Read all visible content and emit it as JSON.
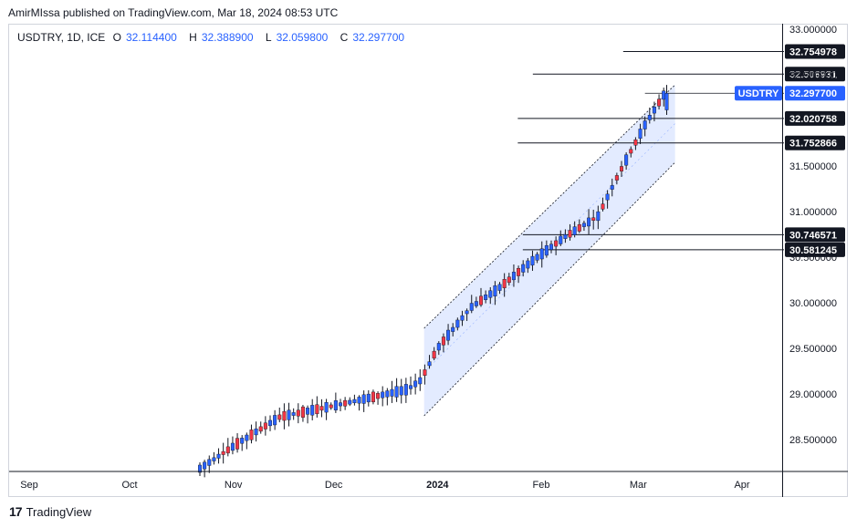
{
  "header": {
    "published": "AmirMIssa published on TradingView.com, Mar 18, 2024 08:53 UTC"
  },
  "legend": {
    "symbol": "USDTRY, 1D, ICE",
    "o_label": "O",
    "o": "32.114400",
    "h_label": "H",
    "h": "32.388900",
    "l_label": "L",
    "l": "32.059800",
    "c_label": "C",
    "c": "32.297700"
  },
  "footer": {
    "logo": "17",
    "brand": "TradingView"
  },
  "colors": {
    "up": "#2962ff",
    "down": "#f23645",
    "wick": "#131722",
    "channel_fill": "#2962ff"
  },
  "chart_data": {
    "type": "candlestick",
    "symbol": "USDTRY",
    "interval": "1D",
    "ylim": [
      28.15,
      33.05
    ],
    "y_ticks": [
      "33.000000",
      "32.500000",
      "31.500000",
      "31.000000",
      "30.500000",
      "30.000000",
      "29.500000",
      "29.000000",
      "28.500000"
    ],
    "y_tick_values": [
      33.0,
      32.5,
      31.5,
      31.0,
      30.5,
      30.0,
      29.5,
      29.0,
      28.5
    ],
    "x_labels": [
      "Sep",
      "Oct",
      "Nov",
      "Dec",
      "2024",
      "Feb",
      "Mar",
      "Apr"
    ],
    "x_label_days": [
      0,
      30,
      61,
      91,
      122,
      153,
      182,
      213
    ],
    "x_day_range": [
      -6,
      225
    ],
    "current_price": {
      "label": "USDTRY",
      "value": "32.297700",
      "price": 32.2977
    },
    "levels": [
      {
        "value": "32.754978",
        "price": 32.754978,
        "from_day": 177.5
      },
      {
        "value": "32.506931",
        "price": 32.506931,
        "from_day": 150.5
      },
      {
        "value": "32.020758",
        "price": 32.020758,
        "from_day": 146
      },
      {
        "value": "31.752866",
        "price": 31.752866,
        "from_day": 146
      },
      {
        "value": "30.746571",
        "price": 30.746571,
        "from_day": 147.5
      },
      {
        "value": "30.581245",
        "price": 30.581245,
        "from_day": 147.5
      }
    ],
    "channel": {
      "start_day": 118,
      "end_day": 193,
      "upper_start": 29.72,
      "upper_end": 32.39,
      "lower_start": 28.76,
      "lower_end": 31.54
    },
    "anchor_points": [
      {
        "day": 51,
        "price": 28.18
      },
      {
        "day": 62,
        "price": 28.45
      },
      {
        "day": 75,
        "price": 28.75
      },
      {
        "day": 91,
        "price": 28.87
      },
      {
        "day": 113,
        "price": 29.05
      },
      {
        "day": 117,
        "price": 29.15
      },
      {
        "day": 122,
        "price": 29.5
      },
      {
        "day": 132,
        "price": 29.95
      },
      {
        "day": 140,
        "price": 30.15
      },
      {
        "day": 150,
        "price": 30.45
      },
      {
        "day": 160,
        "price": 30.72
      },
      {
        "day": 170,
        "price": 30.95
      },
      {
        "day": 176,
        "price": 31.4
      },
      {
        "day": 184,
        "price": 31.95
      },
      {
        "day": 190,
        "price": 32.3
      }
    ]
  }
}
